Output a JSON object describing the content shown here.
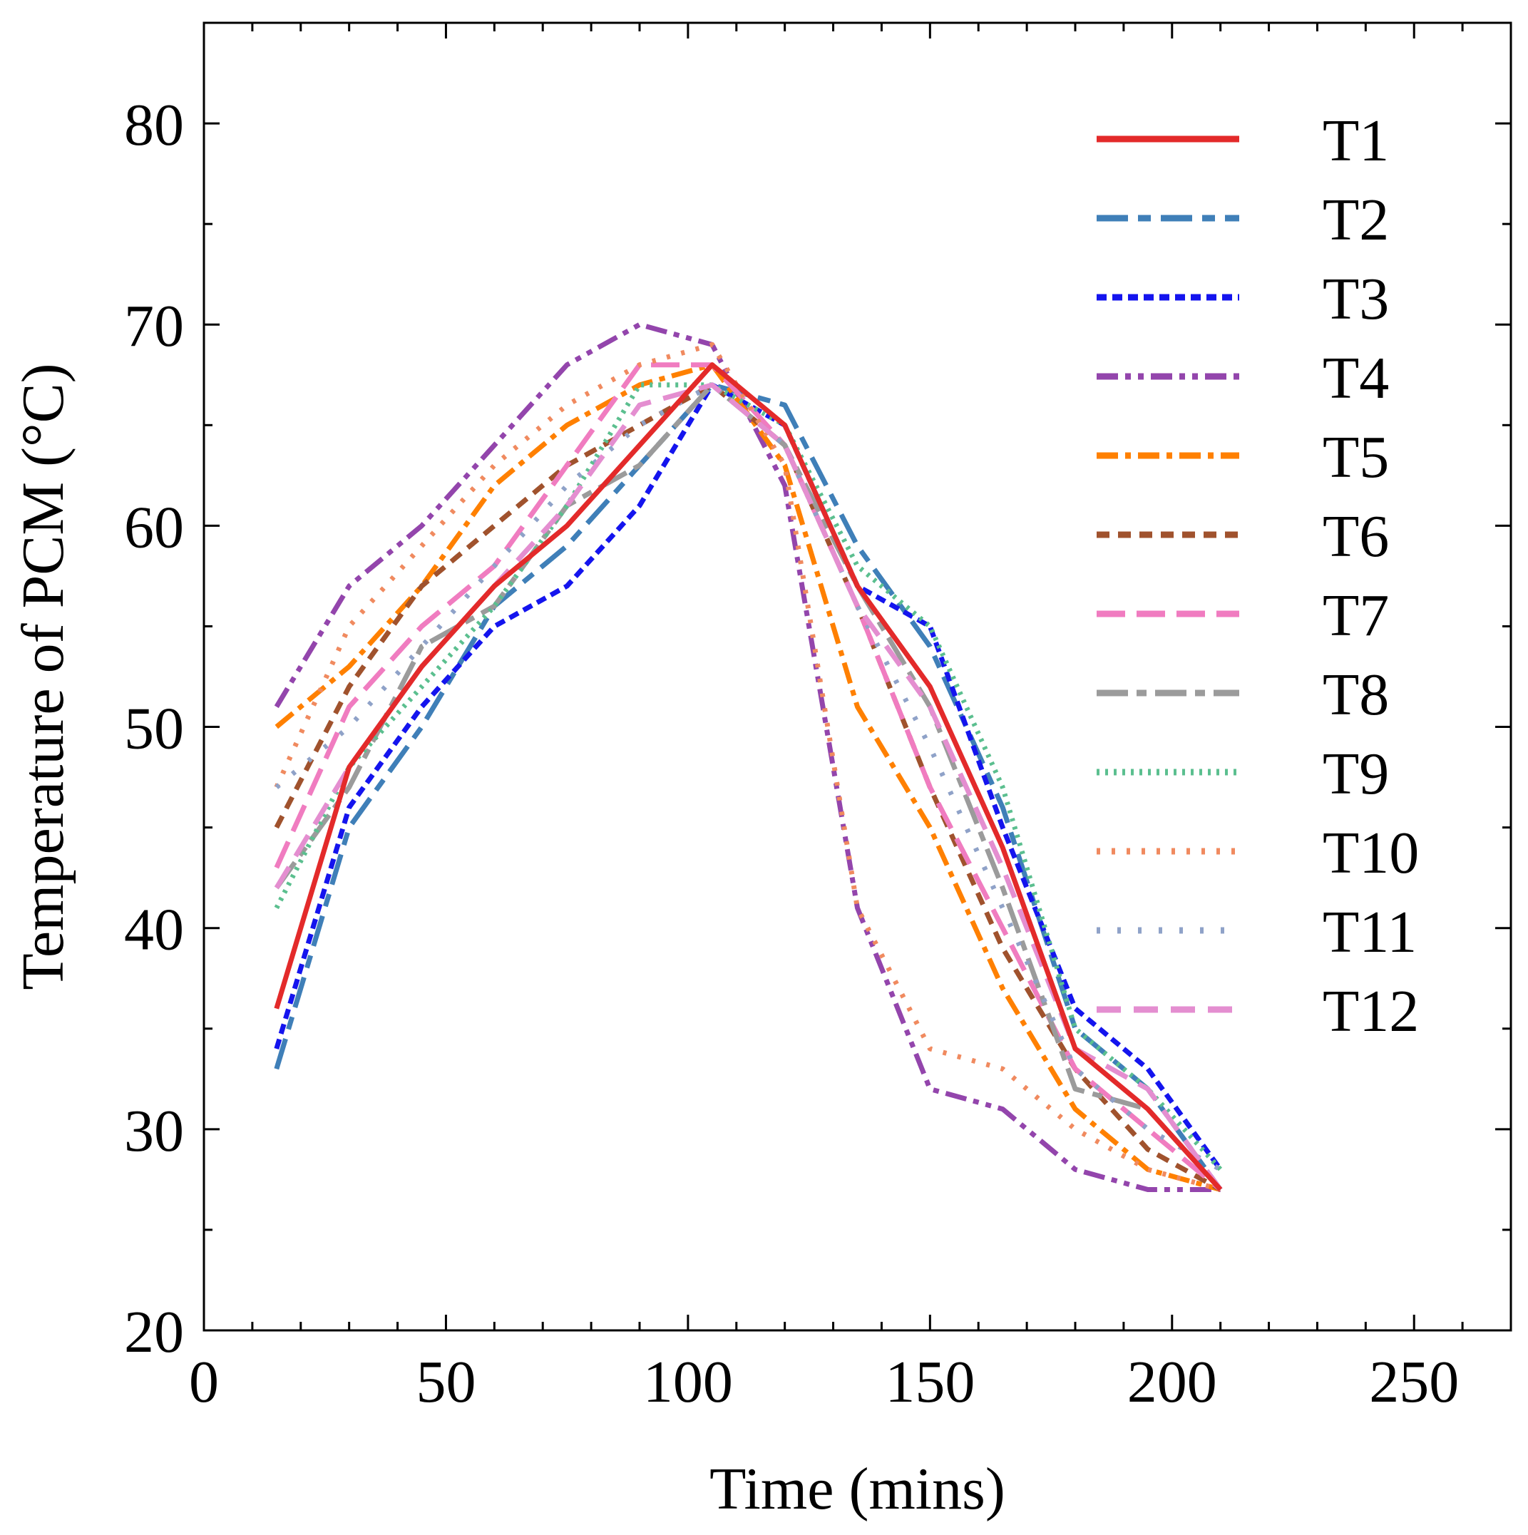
{
  "chart_data": {
    "type": "line",
    "title": "",
    "xlabel": "Time (mins)",
    "ylabel": "Temperature of PCM (°C)",
    "xlim": [
      0,
      270
    ],
    "ylim": [
      20,
      85
    ],
    "xticks": [
      0,
      50,
      100,
      150,
      200,
      250
    ],
    "yticks": [
      20,
      30,
      40,
      50,
      60,
      70,
      80
    ],
    "xtick_labels": [
      "0",
      "50",
      "100",
      "150",
      "200",
      "250"
    ],
    "ytick_labels": [
      "20",
      "30",
      "40",
      "50",
      "60",
      "70",
      "80"
    ],
    "x_minor_step": 10,
    "y_minor_step": 5,
    "grid": false,
    "legend_position": "top-right",
    "x": [
      15,
      30,
      45,
      60,
      75,
      90,
      105,
      120,
      135,
      150,
      165,
      180,
      195,
      210
    ],
    "series": [
      {
        "name": "T1",
        "color": "#e32a2a",
        "dash": "",
        "width": 7,
        "values": [
          36,
          48,
          53,
          57,
          60,
          64,
          68,
          65,
          57,
          52,
          44,
          34,
          31,
          27
        ]
      },
      {
        "name": "T2",
        "color": "#3f7fb8",
        "dash": "44,14,18,14",
        "width": 7,
        "values": [
          33,
          45,
          50,
          56,
          59,
          63,
          67,
          66,
          59,
          54,
          46,
          35,
          32,
          27
        ]
      },
      {
        "name": "T3",
        "color": "#1414ee",
        "dash": "14,8",
        "width": 7,
        "values": [
          34,
          46,
          51,
          55,
          57,
          61,
          67,
          65,
          57,
          55,
          45,
          36,
          33,
          28
        ]
      },
      {
        "name": "T4",
        "color": "#9345ac",
        "dash": "30,10,8,10,8,10",
        "width": 7,
        "values": [
          51,
          57,
          60,
          64,
          68,
          70,
          69,
          62,
          41,
          32,
          31,
          28,
          27,
          27
        ]
      },
      {
        "name": "T5",
        "color": "#ff8000",
        "dash": "30,10,8,10",
        "width": 7,
        "values": [
          50,
          53,
          57,
          62,
          65,
          67,
          68,
          63,
          51,
          45,
          37,
          31,
          28,
          27
        ]
      },
      {
        "name": "T6",
        "color": "#a0522d",
        "dash": "18,12",
        "width": 7,
        "values": [
          45,
          52,
          57,
          60,
          63,
          65,
          67,
          64,
          56,
          47,
          39,
          33,
          29,
          27
        ]
      },
      {
        "name": "T7",
        "color": "#f07cc0",
        "dash": "40,16",
        "width": 7,
        "values": [
          43,
          51,
          55,
          58,
          63,
          68,
          68,
          64,
          56,
          47,
          40,
          33,
          30,
          27
        ]
      },
      {
        "name": "T8",
        "color": "#9b9b9b",
        "dash": "44,12,14,12",
        "width": 7,
        "values": [
          42,
          47,
          54,
          56,
          61,
          63,
          67,
          64,
          57,
          51,
          42,
          32,
          31,
          27
        ]
      },
      {
        "name": "T9",
        "color": "#5bbf8f",
        "dash": "4,8",
        "width": 7,
        "values": [
          41,
          48,
          52,
          56,
          61,
          67,
          67,
          65,
          58,
          55,
          47,
          35,
          32,
          28
        ]
      },
      {
        "name": "T10",
        "color": "#f08a5f",
        "dash": "5,16",
        "width": 7,
        "values": [
          47,
          55,
          59,
          63,
          66,
          68,
          69,
          63,
          41,
          34,
          33,
          30,
          28,
          27
        ]
      },
      {
        "name": "T11",
        "color": "#8fa2c8",
        "dash": "5,24",
        "width": 7,
        "values": [
          47,
          50,
          54,
          58,
          62,
          65,
          67,
          64,
          56,
          49,
          41,
          33,
          30,
          28
        ]
      },
      {
        "name": "T12",
        "color": "#e48ed0",
        "dash": "34,18",
        "width": 7,
        "values": [
          42,
          48,
          53,
          57,
          61,
          66,
          67,
          64,
          56,
          51,
          43,
          34,
          32,
          27
        ]
      }
    ]
  }
}
